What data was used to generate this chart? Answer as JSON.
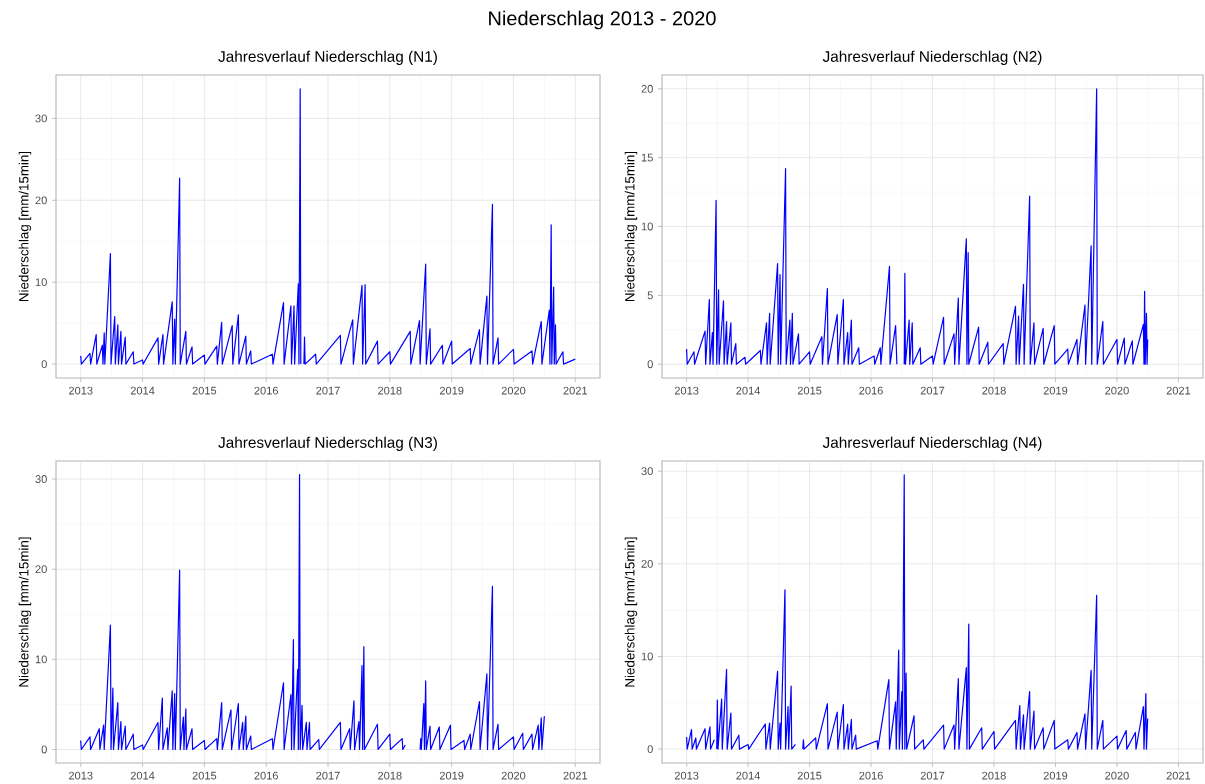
{
  "chart_data": [
    {
      "type": "other",
      "title": "Niederschlag 2013 - 2020"
    },
    {
      "type": "line",
      "title": "Jahresverlauf Niederschlag (N1)",
      "ylabel": "Niederschlag [mm/15min]",
      "color": "#0000ff",
      "grid": true,
      "xlim": [
        2012.6,
        2021.4
      ],
      "xticks": [
        2013,
        2014,
        2015,
        2016,
        2017,
        2018,
        2019,
        2020,
        2021
      ],
      "ylim": [
        -1.7,
        35.3
      ],
      "yticks": [
        0,
        10,
        20,
        30
      ],
      "x": [
        2013.0,
        2013.01,
        2013.15,
        2013.16,
        2013.25,
        2013.26,
        2013.35,
        2013.36,
        2013.38,
        2013.39,
        2013.48,
        2013.49,
        2013.55,
        2013.56,
        2013.6,
        2013.61,
        2013.65,
        2013.66,
        2013.72,
        2013.73,
        2013.85,
        2013.86,
        2014.0,
        2014.01,
        2014.25,
        2014.26,
        2014.33,
        2014.34,
        2014.48,
        2014.49,
        2014.52,
        2014.53,
        2014.6,
        2014.61,
        2014.7,
        2014.71,
        2014.8,
        2014.81,
        2015.0,
        2015.01,
        2015.2,
        2015.21,
        2015.28,
        2015.29,
        2015.45,
        2015.46,
        2015.55,
        2015.56,
        2015.67,
        2015.68,
        2015.75,
        2015.76,
        2016.1,
        2016.11,
        2016.28,
        2016.29,
        2016.4,
        2016.41,
        2016.45,
        2016.46,
        2016.52,
        2016.53,
        2016.55,
        2016.56,
        2016.58,
        2016.61,
        2016.62,
        2016.63,
        2016.8,
        2016.81,
        2017.2,
        2017.21,
        2017.4,
        2017.41,
        2017.55,
        2017.56,
        2017.6,
        2017.61,
        2017.8,
        2017.81,
        2018.0,
        2018.01,
        2018.33,
        2018.34,
        2018.48,
        2018.49,
        2018.58,
        2018.59,
        2018.65,
        2018.66,
        2018.85,
        2018.86,
        2019.0,
        2019.01,
        2019.3,
        2019.31,
        2019.45,
        2019.46,
        2019.57,
        2019.58,
        2019.66,
        2019.67,
        2019.75,
        2019.76,
        2020.0,
        2020.01,
        2020.3,
        2020.31,
        2020.45,
        2020.46,
        2020.58,
        2020.59,
        2020.61,
        2020.62,
        2020.65,
        2020.66,
        2020.68,
        2020.69,
        2020.8,
        2020.81,
        2021.0
      ],
      "values": [
        1.0,
        0,
        1.3,
        0,
        3.6,
        0,
        2.3,
        0,
        3.8,
        0,
        13.5,
        0,
        5.8,
        0,
        4.8,
        0,
        4.0,
        0,
        3.3,
        0,
        1.5,
        0,
        0.5,
        0,
        3.2,
        0,
        3.6,
        0,
        7.6,
        0,
        5.5,
        0,
        22.7,
        0,
        4.0,
        0,
        2.1,
        0,
        1.1,
        0,
        2.2,
        0,
        5.1,
        0,
        4.7,
        0,
        6.0,
        0,
        3.4,
        0,
        1.6,
        0,
        1.2,
        0,
        7.5,
        0,
        7.1,
        0,
        7.1,
        0,
        9.8,
        0,
        33.6,
        0,
        null,
        0,
        3.3,
        0,
        1.2,
        0,
        3.5,
        0,
        5.4,
        0,
        9.6,
        0,
        9.7,
        0,
        2.8,
        0,
        1.5,
        0,
        4.0,
        0,
        5.3,
        0,
        12.2,
        0,
        4.3,
        0,
        2.3,
        0,
        2.8,
        0,
        1.9,
        0,
        4.2,
        0,
        8.3,
        0,
        19.5,
        0,
        3.2,
        0,
        1.8,
        0,
        1.6,
        0,
        5.2,
        0,
        6.6,
        0,
        17.0,
        0,
        9.4,
        0,
        4.8,
        0,
        1.5,
        0,
        0.6
      ]
    },
    {
      "type": "line",
      "title": "Jahresverlauf Niederschlag (N2)",
      "ylabel": "Niederschlag [mm/15min]",
      "color": "#0000ff",
      "grid": true,
      "xlim": [
        2012.6,
        2021.4
      ],
      "xticks": [
        2013,
        2014,
        2015,
        2016,
        2017,
        2018,
        2019,
        2020,
        2021
      ],
      "ylim": [
        -1,
        21
      ],
      "yticks": [
        0,
        5,
        10,
        15,
        20
      ],
      "x": [
        2013.0,
        2013.01,
        2013.12,
        2013.13,
        2013.3,
        2013.31,
        2013.37,
        2013.38,
        2013.42,
        2013.43,
        2013.48,
        2013.49,
        2013.52,
        2013.53,
        2013.6,
        2013.61,
        2013.65,
        2013.66,
        2013.72,
        2013.73,
        2013.8,
        2013.81,
        2013.95,
        2013.96,
        2014.2,
        2014.21,
        2014.3,
        2014.31,
        2014.35,
        2014.36,
        2014.48,
        2014.49,
        2014.52,
        2014.53,
        2014.61,
        2014.62,
        2014.68,
        2014.69,
        2014.72,
        2014.73,
        2014.82,
        2014.83,
        2015.0,
        2015.01,
        2015.2,
        2015.21,
        2015.29,
        2015.3,
        2015.45,
        2015.46,
        2015.55,
        2015.56,
        2015.62,
        2015.63,
        2015.68,
        2015.69,
        2015.8,
        2015.81,
        2016.05,
        2016.06,
        2016.15,
        2016.16,
        2016.3,
        2016.31,
        2016.4,
        2016.42,
        2016.48,
        2016.54,
        2016.55,
        2016.56,
        2016.62,
        2016.63,
        2016.67,
        2016.68,
        2016.8,
        2016.81,
        2017.0,
        2017.01,
        2017.18,
        2017.19,
        2017.35,
        2017.36,
        2017.42,
        2017.43,
        2017.55,
        2017.56,
        2017.58,
        2017.59,
        2017.75,
        2017.76,
        2017.9,
        2017.91,
        2018.15,
        2018.16,
        2018.35,
        2018.36,
        2018.4,
        2018.41,
        2018.48,
        2018.49,
        2018.58,
        2018.59,
        2018.65,
        2018.66,
        2018.8,
        2018.81,
        2018.98,
        2018.99,
        2019.2,
        2019.21,
        2019.35,
        2019.36,
        2019.48,
        2019.49,
        2019.58,
        2019.59,
        2019.67,
        2019.68,
        2019.77,
        2019.78,
        2020.0,
        2020.01,
        2020.12,
        2020.13,
        2020.25,
        2020.26,
        2020.43,
        2020.44,
        2020.45,
        2020.46,
        2020.48,
        2020.49,
        2020.5
      ],
      "values": [
        1.1,
        0,
        0.9,
        0,
        2.4,
        0,
        4.7,
        0,
        2.3,
        0,
        11.9,
        0,
        5.4,
        0,
        4.6,
        0,
        3.1,
        0,
        3.0,
        0,
        1.5,
        0,
        0.5,
        0,
        1.0,
        0,
        3.0,
        0,
        3.7,
        0,
        7.3,
        0,
        6.5,
        0,
        14.2,
        0,
        3.2,
        0,
        3.7,
        0,
        2.2,
        0,
        0.9,
        0,
        2.0,
        0,
        5.5,
        0,
        3.6,
        0,
        4.7,
        0,
        2.3,
        0,
        3.2,
        0,
        1.2,
        0,
        0.6,
        0,
        1.2,
        0,
        7.1,
        0,
        2.8,
        0,
        null,
        0,
        6.6,
        0,
        3.2,
        0,
        3.0,
        0,
        1.2,
        0,
        0.6,
        0,
        3.4,
        0,
        2.2,
        0,
        4.8,
        0,
        9.1,
        0,
        8.1,
        0,
        2.7,
        0,
        1.6,
        0,
        1.5,
        0,
        4.2,
        0,
        3.5,
        0,
        5.8,
        0,
        12.2,
        0,
        3.0,
        0,
        2.6,
        0,
        2.8,
        0,
        1.1,
        0,
        1.8,
        0,
        4.3,
        0,
        8.6,
        0,
        20.0,
        0,
        3.1,
        0,
        1.8,
        0,
        1.9,
        0,
        1.7,
        0,
        2.9,
        0,
        5.3,
        0,
        3.7,
        0,
        1.8
      ]
    },
    {
      "type": "line",
      "title": "Jahresverlauf Niederschlag (N3)",
      "ylabel": "Niederschlag [mm/15min]",
      "color": "#0000ff",
      "grid": true,
      "xlim": [
        2012.6,
        2021.4
      ],
      "xticks": [
        2013,
        2014,
        2015,
        2016,
        2017,
        2018,
        2019,
        2020,
        2021
      ],
      "ylim": [
        -1.5,
        32
      ],
      "yticks": [
        0,
        10,
        20,
        30
      ],
      "x": [
        2013.0,
        2013.01,
        2013.15,
        2013.16,
        2013.3,
        2013.31,
        2013.37,
        2013.38,
        2013.48,
        2013.49,
        2013.52,
        2013.53,
        2013.6,
        2013.61,
        2013.65,
        2013.66,
        2013.72,
        2013.73,
        2013.85,
        2013.86,
        2014.0,
        2014.01,
        2014.25,
        2014.26,
        2014.32,
        2014.33,
        2014.4,
        2014.41,
        2014.48,
        2014.49,
        2014.52,
        2014.53,
        2014.6,
        2014.61,
        2014.66,
        2014.67,
        2014.7,
        2014.71,
        2014.8,
        2014.81,
        2015.0,
        2015.01,
        2015.2,
        2015.21,
        2015.28,
        2015.29,
        2015.43,
        2015.44,
        2015.55,
        2015.56,
        2015.62,
        2015.63,
        2015.67,
        2015.68,
        2015.75,
        2015.76,
        2016.1,
        2016.11,
        2016.28,
        2016.29,
        2016.4,
        2016.41,
        2016.44,
        2016.45,
        2016.51,
        2016.52,
        2016.54,
        2016.55,
        2016.58,
        2016.59,
        2016.65,
        2016.66,
        2016.7,
        2016.71,
        2016.85,
        2016.86,
        2017.2,
        2017.21,
        2017.35,
        2017.36,
        2017.42,
        2017.43,
        2017.5,
        2017.51,
        2017.55,
        2017.56,
        2017.58,
        2017.59,
        2017.8,
        2017.81,
        2018.0,
        2018.01,
        2018.2,
        2018.21,
        2018.25,
        2018.38,
        2018.49,
        2018.5,
        2018.51,
        2018.55,
        2018.56,
        2018.58,
        2018.59,
        2018.65,
        2018.66,
        2018.8,
        2018.81,
        2018.98,
        2018.99,
        2019.2,
        2019.21,
        2019.3,
        2019.31,
        2019.45,
        2019.46,
        2019.57,
        2019.58,
        2019.66,
        2019.67,
        2019.75,
        2019.76,
        2020.0,
        2020.01,
        2020.15,
        2020.16,
        2020.3,
        2020.31,
        2020.4,
        2020.41,
        2020.45,
        2020.46,
        2020.5
      ],
      "values": [
        1.0,
        0,
        1.4,
        0,
        2.3,
        0,
        2.7,
        0,
        13.8,
        0,
        6.8,
        0,
        5.2,
        0,
        3.1,
        0,
        2.6,
        0,
        1.7,
        0,
        0.5,
        0,
        3.0,
        0,
        5.7,
        0,
        2.4,
        0,
        6.5,
        0,
        6.2,
        0,
        19.9,
        0,
        3.6,
        0,
        4.5,
        0,
        2.3,
        0,
        1.0,
        0,
        1.2,
        0,
        5.2,
        0,
        4.4,
        0,
        5.1,
        0,
        3.0,
        0,
        3.7,
        0,
        1.5,
        0,
        1.2,
        0,
        7.4,
        0,
        6.1,
        0,
        12.2,
        0,
        8.9,
        0,
        30.5,
        0,
        4.9,
        0,
        3.0,
        0,
        3.0,
        0,
        1.1,
        0,
        3.0,
        0,
        2.3,
        0,
        5.4,
        0,
        3.1,
        0,
        9.3,
        0,
        11.4,
        0,
        2.8,
        0,
        1.7,
        0,
        1.2,
        0,
        0.5,
        null,
        0,
        1.2,
        0,
        5.1,
        0,
        7.6,
        0,
        2.6,
        0,
        2.5,
        0,
        2.7,
        0,
        1.0,
        0,
        1.7,
        0,
        5.3,
        0,
        8.4,
        0,
        18.1,
        0,
        2.8,
        0,
        1.4,
        0,
        1.8,
        0,
        1.7,
        0,
        2.7,
        0,
        3.5,
        0,
        3.7
      ]
    },
    {
      "type": "line",
      "title": "Jahresverlauf Niederschlag (N4)",
      "ylabel": "Niederschlag [mm/15min]",
      "color": "#0000ff",
      "grid": true,
      "xlim": [
        2012.6,
        2021.4
      ],
      "xticks": [
        2013,
        2014,
        2015,
        2016,
        2017,
        2018,
        2019,
        2020,
        2021
      ],
      "ylim": [
        -1.5,
        31.1
      ],
      "yticks": [
        0,
        10,
        20,
        30
      ],
      "x": [
        2013.0,
        2013.01,
        2013.08,
        2013.09,
        2013.15,
        2013.16,
        2013.3,
        2013.31,
        2013.38,
        2013.39,
        2013.45,
        2013.47,
        2013.49,
        2013.5,
        2013.51,
        2013.57,
        2013.58,
        2013.65,
        2013.66,
        2013.72,
        2013.73,
        2013.85,
        2013.86,
        2014.0,
        2014.01,
        2014.28,
        2014.29,
        2014.35,
        2014.36,
        2014.48,
        2014.49,
        2014.52,
        2014.53,
        2014.6,
        2014.61,
        2014.65,
        2014.66,
        2014.7,
        2014.71,
        2014.77,
        2014.83,
        2014.89,
        2014.9,
        2014.91,
        2015.1,
        2015.11,
        2015.29,
        2015.3,
        2015.45,
        2015.46,
        2015.55,
        2015.56,
        2015.62,
        2015.63,
        2015.68,
        2015.69,
        2015.75,
        2015.76,
        2016.1,
        2016.11,
        2016.29,
        2016.3,
        2016.4,
        2016.41,
        2016.45,
        2016.46,
        2016.5,
        2016.51,
        2016.54,
        2016.55,
        2016.57,
        2016.58,
        2016.7,
        2016.71,
        2016.85,
        2016.86,
        2017.18,
        2017.19,
        2017.35,
        2017.36,
        2017.42,
        2017.43,
        2017.55,
        2017.56,
        2017.59,
        2017.6,
        2017.8,
        2017.81,
        2018.0,
        2018.01,
        2018.35,
        2018.36,
        2018.42,
        2018.43,
        2018.48,
        2018.49,
        2018.58,
        2018.59,
        2018.65,
        2018.66,
        2018.8,
        2018.81,
        2018.98,
        2018.99,
        2019.2,
        2019.21,
        2019.35,
        2019.36,
        2019.48,
        2019.49,
        2019.58,
        2019.59,
        2019.67,
        2019.68,
        2019.77,
        2019.78,
        2020.0,
        2020.01,
        2020.15,
        2020.16,
        2020.3,
        2020.31,
        2020.43,
        2020.44,
        2020.47,
        2020.48,
        2020.5
      ],
      "values": [
        1.3,
        0,
        2.1,
        0,
        1.2,
        0,
        2.2,
        0,
        2.4,
        0,
        1.0,
        null,
        0,
        5.3,
        0,
        5.4,
        0,
        8.6,
        0,
        3.9,
        0,
        1.5,
        0,
        0.5,
        0,
        2.7,
        0,
        2.8,
        0,
        8.4,
        0,
        2.8,
        0,
        17.2,
        0,
        4.6,
        0,
        6.8,
        0,
        0.5,
        null,
        0,
        1.0,
        0,
        1.2,
        0,
        4.9,
        0,
        4.0,
        0,
        4.8,
        0,
        2.7,
        0,
        3.2,
        0,
        1.5,
        0,
        0.9,
        0,
        7.5,
        0,
        5.1,
        0,
        10.7,
        0,
        6.2,
        0,
        29.6,
        0,
        8.2,
        0,
        3.6,
        0,
        1.0,
        0,
        2.6,
        0,
        2.6,
        0,
        7.6,
        0,
        8.8,
        0,
        13.5,
        0,
        2.3,
        0,
        1.9,
        0,
        3.1,
        0,
        4.7,
        0,
        3.7,
        0,
        6.2,
        0,
        4.1,
        0,
        2.3,
        0,
        3.1,
        0,
        1.0,
        0,
        1.8,
        0,
        3.8,
        0,
        8.5,
        0,
        16.6,
        0,
        3.1,
        0,
        1.4,
        0,
        2.0,
        0,
        1.8,
        0,
        4.6,
        0,
        6.0,
        0,
        3.3
      ]
    }
  ]
}
